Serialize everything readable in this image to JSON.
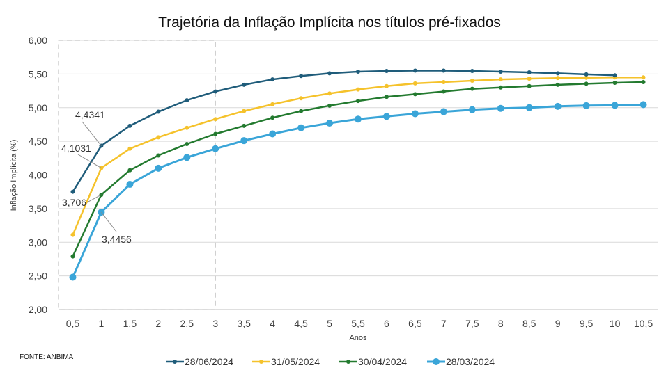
{
  "chart_data": {
    "type": "line",
    "title": "Trajetória da Inflação Implícita nos títulos pré-fixados",
    "xlabel": "Anos",
    "ylabel": "Inflação Implícita (%)",
    "source": "FONTE: ANBIMA",
    "ylim": [
      2.0,
      6.0
    ],
    "y_ticks": [
      "2,00",
      "2,50",
      "3,00",
      "3,50",
      "4,00",
      "4,50",
      "5,00",
      "5,50",
      "6,00"
    ],
    "categories": [
      "0,5",
      "1",
      "1,5",
      "2",
      "2,5",
      "3",
      "3,5",
      "4",
      "4,5",
      "5",
      "5,5",
      "6",
      "6,5",
      "7",
      "7,5",
      "8",
      "8,5",
      "9",
      "9,5",
      "10",
      "10,5"
    ],
    "x": [
      0.5,
      1,
      1.5,
      2,
      2.5,
      3,
      3.5,
      4,
      4.5,
      5,
      5.5,
      6,
      6.5,
      7,
      7.5,
      8,
      8.5,
      9,
      9.5,
      10,
      10.5
    ],
    "grid": "horizontal",
    "legend_position": "bottom",
    "highlight_region": {
      "x_from": 0.5,
      "x_to": 3,
      "style": "dashed"
    },
    "series": [
      {
        "name": "28/06/2024",
        "color": "#1f5c7a",
        "values": [
          3.75,
          4.4341,
          4.73,
          4.94,
          5.11,
          5.24,
          5.34,
          5.42,
          5.47,
          5.51,
          5.535,
          5.545,
          5.55,
          5.55,
          5.545,
          5.535,
          5.525,
          5.51,
          5.495,
          5.48,
          null
        ]
      },
      {
        "name": "31/05/2024",
        "color": "#f5c22b",
        "values": [
          3.11,
          4.1031,
          4.39,
          4.56,
          4.7,
          4.83,
          4.95,
          5.05,
          5.14,
          5.21,
          5.27,
          5.32,
          5.36,
          5.38,
          5.4,
          5.42,
          5.43,
          5.44,
          5.445,
          5.45,
          5.45
        ]
      },
      {
        "name": "30/04/2024",
        "color": "#237a2f",
        "values": [
          2.79,
          3.706,
          4.07,
          4.29,
          4.46,
          4.61,
          4.73,
          4.85,
          4.95,
          5.03,
          5.1,
          5.16,
          5.2,
          5.24,
          5.28,
          5.3,
          5.32,
          5.34,
          5.355,
          5.37,
          5.38
        ]
      },
      {
        "name": "28/03/2024",
        "color": "#3aa5d8",
        "values": [
          2.48,
          3.4456,
          3.86,
          4.1,
          4.26,
          4.39,
          4.51,
          4.61,
          4.7,
          4.77,
          4.83,
          4.87,
          4.91,
          4.94,
          4.97,
          4.99,
          5.0,
          5.02,
          5.03,
          5.035,
          5.045
        ]
      }
    ],
    "annotations": [
      {
        "text": "4,4341",
        "series": 0,
        "x": 1
      },
      {
        "text": "4,1031",
        "series": 1,
        "x": 1
      },
      {
        "text": "3,706",
        "series": 2,
        "x": 1
      },
      {
        "text": "3,4456",
        "series": 3,
        "x": 1
      }
    ]
  }
}
